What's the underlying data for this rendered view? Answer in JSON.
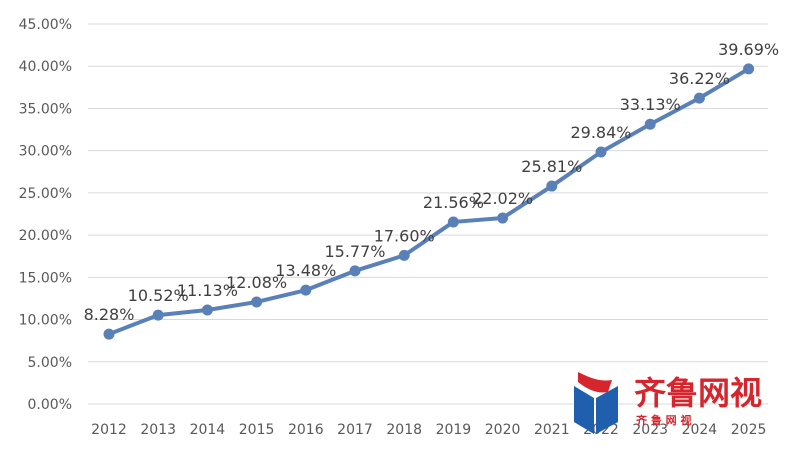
{
  "chart_data": {
    "type": "line",
    "x": [
      "2012",
      "2013",
      "2014",
      "2015",
      "2016",
      "2017",
      "2018",
      "2019",
      "2020",
      "2021",
      "2022",
      "2023",
      "2024",
      "2025"
    ],
    "values": [
      8.28,
      10.52,
      11.13,
      12.08,
      13.48,
      15.77,
      17.6,
      21.56,
      22.02,
      25.81,
      29.84,
      33.13,
      36.22,
      39.69
    ],
    "data_labels": [
      "8.28%",
      "10.52%",
      "11.13%",
      "12.08%",
      "13.48%",
      "15.77%",
      "17.60%",
      "21.56%",
      "22.02%",
      "25.81%",
      "29.84%",
      "33.13%",
      "36.22%",
      "39.69%"
    ],
    "y_ticks": [
      "0.00%",
      "5.00%",
      "10.00%",
      "15.00%",
      "20.00%",
      "25.00%",
      "30.00%",
      "35.00%",
      "40.00%",
      "45.00%"
    ],
    "ylim": [
      0,
      45
    ],
    "grid": true,
    "legend": "none",
    "title": "",
    "xlabel": "",
    "ylabel": "",
    "line_color": "#5a80b8"
  },
  "watermark": {
    "text": "齐鲁网视",
    "subtext": "齐 鲁 网 视",
    "red": "#d6252c",
    "blue": "#1f5fae"
  }
}
